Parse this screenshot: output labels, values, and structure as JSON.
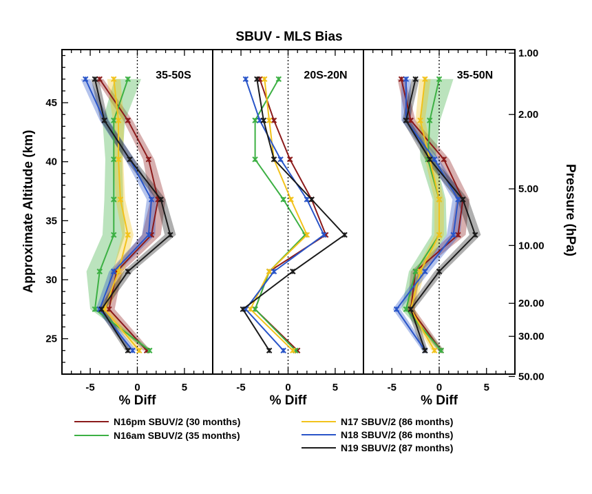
{
  "chart_data": {
    "type": "line",
    "title": "SBUV - MLS  Bias",
    "xlabel": "% Diff",
    "ylabel_left": "Approximate Altitude (km)",
    "ylabel_right": "Pressure (hPa)",
    "xlim": [
      -8,
      8
    ],
    "ylim": [
      22,
      49.5
    ],
    "xticks": [
      -5,
      0,
      5
    ],
    "left_ticks": [
      25,
      30,
      35,
      40,
      45
    ],
    "pressure_ticks": [
      {
        "label": "1.00",
        "alt": 49.2
      },
      {
        "label": "2.00",
        "alt": 44.0
      },
      {
        "label": "5.00",
        "alt": 37.7
      },
      {
        "label": "10.00",
        "alt": 32.9
      },
      {
        "label": "20.00",
        "alt": 28.0
      },
      {
        "label": "30.00",
        "alt": 25.2
      },
      {
        "label": "50.00",
        "alt": 21.8
      }
    ],
    "altitudes": [
      47.0,
      43.5,
      40.2,
      36.8,
      33.8,
      30.7,
      27.5,
      24.0
    ],
    "panels": [
      {
        "region": "35-50S",
        "series": [
          {
            "name": "N16pm SBUV/2 (30 months)",
            "color": "#8b1a1a",
            "values": [
              -4.0,
              -1.0,
              1.2,
              2.2,
              1.5,
              -2.2,
              -3.0,
              1.0
            ],
            "spread": [
              0.4,
              0.5,
              0.6,
              0.8,
              1.0,
              0.6,
              0.6,
              0.4
            ]
          },
          {
            "name": "N16am SBUV/2 (35 months)",
            "color": "#3cb043",
            "values": [
              -1.0,
              -2.5,
              -2.5,
              -2.5,
              -2.5,
              -4.0,
              -4.5,
              1.3
            ],
            "spread": [
              1.4,
              1.2,
              0.9,
              1.0,
              1.2,
              1.4,
              0.5,
              0.3
            ]
          },
          {
            "name": "N17 SBUV/2 (86 months)",
            "color": "#f2c21b",
            "values": [
              -2.5,
              -2.0,
              -2.0,
              -1.8,
              -1.0,
              -2.0,
              -3.5,
              0.2
            ],
            "spread": [
              0.7,
              0.6,
              0.5,
              0.5,
              0.6,
              0.6,
              0.5,
              0.3
            ]
          },
          {
            "name": "N18 SBUV/2 (86 months)",
            "color": "#2854c8",
            "values": [
              -5.5,
              -3.5,
              -0.8,
              1.5,
              1.2,
              -2.5,
              -4.0,
              -0.5
            ],
            "spread": [
              0.5,
              0.5,
              0.5,
              0.5,
              0.7,
              0.5,
              0.4,
              0.4
            ]
          },
          {
            "name": "N19 SBUV/2 (87 months)",
            "color": "#1a1a1a",
            "values": [
              -4.5,
              -3.5,
              -0.8,
              2.5,
              3.5,
              -1.0,
              -3.8,
              -1.0
            ],
            "spread": [
              0.4,
              0.4,
              0.5,
              0.5,
              0.6,
              0.5,
              0.4,
              0.3
            ]
          }
        ]
      },
      {
        "region": "20S-20N",
        "series": [
          {
            "name": "N16pm SBUV/2 (30 months)",
            "color": "#8b1a1a",
            "values": [
              -3.0,
              -1.5,
              0.2,
              2.5,
              4.0,
              -2.0,
              -3.5,
              1.0
            ],
            "spread": [
              0,
              0,
              0,
              0,
              0,
              0,
              0,
              0
            ]
          },
          {
            "name": "N16am SBUV/2 (35 months)",
            "color": "#3cb043",
            "values": [
              -1.0,
              -3.5,
              -3.5,
              -0.5,
              1.8,
              -2.0,
              -3.5,
              0.8
            ],
            "spread": [
              0,
              0,
              0,
              0,
              0,
              0,
              0,
              0
            ]
          },
          {
            "name": "N17 SBUV/2 (86 months)",
            "color": "#f2c21b",
            "values": [
              -2.5,
              -2.0,
              -1.5,
              0.3,
              2.0,
              -2.0,
              -4.0,
              0.5
            ],
            "spread": [
              0,
              0,
              0,
              0,
              0,
              0,
              0,
              0
            ]
          },
          {
            "name": "N18 SBUV/2 (86 months)",
            "color": "#2854c8",
            "values": [
              -4.5,
              -3.0,
              -0.8,
              2.0,
              3.8,
              -1.5,
              -4.5,
              -0.5
            ],
            "spread": [
              0,
              0,
              0,
              0,
              0,
              0,
              0,
              0
            ]
          },
          {
            "name": "N19 SBUV/2 (87 months)",
            "color": "#1a1a1a",
            "values": [
              -3.3,
              -2.6,
              -1.5,
              2.5,
              6.0,
              0.5,
              -4.8,
              -2.0
            ],
            "spread": [
              0,
              0,
              0,
              0,
              0,
              0,
              0,
              0
            ]
          }
        ]
      },
      {
        "region": "35-50N",
        "series": [
          {
            "name": "N16pm SBUV/2 (30 months)",
            "color": "#8b1a1a",
            "values": [
              -4.0,
              -3.0,
              0.5,
              2.5,
              2.0,
              -2.5,
              -3.0,
              0.2
            ],
            "spread": [
              0.4,
              0.5,
              0.6,
              0.7,
              0.8,
              0.5,
              0.4,
              0.3
            ]
          },
          {
            "name": "N16am SBUV/2 (35 months)",
            "color": "#3cb043",
            "values": [
              0,
              -1.0,
              -1.2,
              0,
              0,
              -2.5,
              -3.5,
              0.2
            ],
            "spread": [
              1.5,
              1.1,
              0.8,
              0.7,
              0.8,
              0.7,
              0.5,
              0.3
            ]
          },
          {
            "name": "N17 SBUV/2 (86 months)",
            "color": "#f2c21b",
            "values": [
              -1.5,
              -2.0,
              -1.0,
              0,
              0,
              -2.0,
              -3.0,
              -0.5
            ],
            "spread": [
              0.6,
              0.5,
              0.5,
              0.5,
              0.5,
              0.5,
              0.4,
              0.3
            ]
          },
          {
            "name": "N18 SBUV/2 (86 months)",
            "color": "#2854c8",
            "values": [
              -3.5,
              -3.5,
              -0.5,
              2.0,
              1.5,
              -1.5,
              -4.5,
              -1.5
            ],
            "spread": [
              0.5,
              0.5,
              0.5,
              0.6,
              0.7,
              0.5,
              0.4,
              0.3
            ]
          },
          {
            "name": "N19 SBUV/2 (87 months)",
            "color": "#1a1a1a",
            "values": [
              -2.5,
              -3.5,
              -1.0,
              2.5,
              3.8,
              0,
              -3.0,
              -1.5
            ],
            "spread": [
              0.4,
              0.4,
              0.5,
              0.6,
              0.6,
              0.5,
              0.4,
              0.3
            ]
          }
        ]
      }
    ],
    "legend": [
      {
        "name": "N16pm SBUV/2 (30 months)",
        "color": "#8b1a1a"
      },
      {
        "name": "N16am SBUV/2 (35 months)",
        "color": "#3cb043"
      },
      {
        "name": "N17 SBUV/2 (86 months)",
        "color": "#f2c21b"
      },
      {
        "name": "N18 SBUV/2 (86 months)",
        "color": "#2854c8"
      },
      {
        "name": "N19 SBUV/2 (87 months)",
        "color": "#1a1a1a"
      }
    ]
  }
}
